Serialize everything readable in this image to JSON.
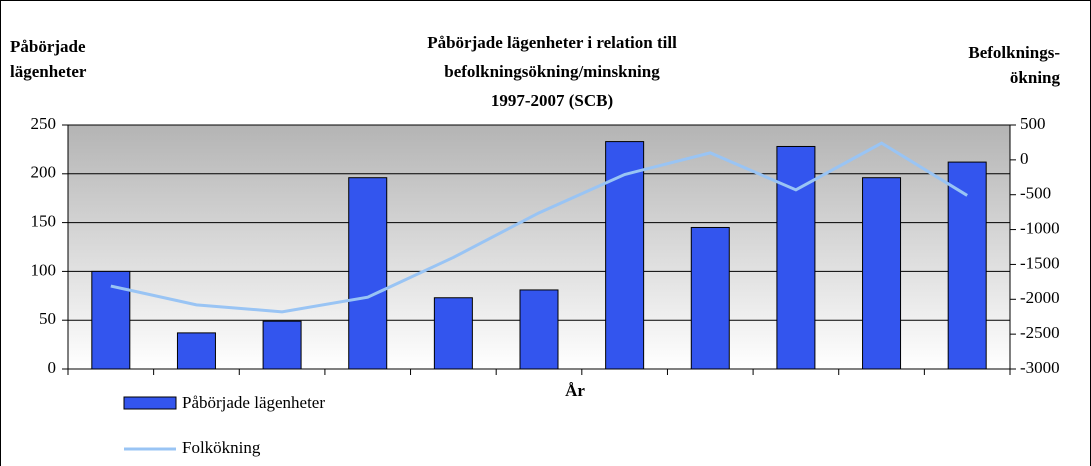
{
  "chart_data": {
    "type": "bar",
    "title": [
      "Påbörjade lägenheter i relation till",
      "befolkningsökning/minskning",
      "1997-2007 (SCB)"
    ],
    "ylabel": [
      "Påbörjade",
      "lägenheter"
    ],
    "y2label": [
      "Befolknings-",
      "ökning"
    ],
    "xlabel": "År",
    "categories": [
      null,
      null,
      null,
      null,
      null,
      null,
      null,
      null,
      null,
      null,
      null
    ],
    "series": [
      {
        "name": "Påbörjade lägenheter",
        "type": "bar",
        "color": "#3355ee",
        "values": [
          100,
          37,
          49,
          196,
          73,
          81,
          233,
          145,
          228,
          196,
          212
        ]
      },
      {
        "name": "Folkökning",
        "type": "line",
        "axis": "y2",
        "color": "#99c4f4",
        "values": [
          -1810,
          -2080,
          -2180,
          -1970,
          -1400,
          -760,
          -210,
          100,
          -430,
          240,
          -510
        ]
      }
    ],
    "ylim": [
      0,
      250
    ],
    "yticks": [
      0,
      50,
      100,
      150,
      200,
      250
    ],
    "y2lim": [
      -3000,
      500
    ],
    "y2ticks": [
      -3000,
      -2500,
      -2000,
      -1500,
      -1000,
      -500,
      0,
      500
    ],
    "grid": true
  }
}
